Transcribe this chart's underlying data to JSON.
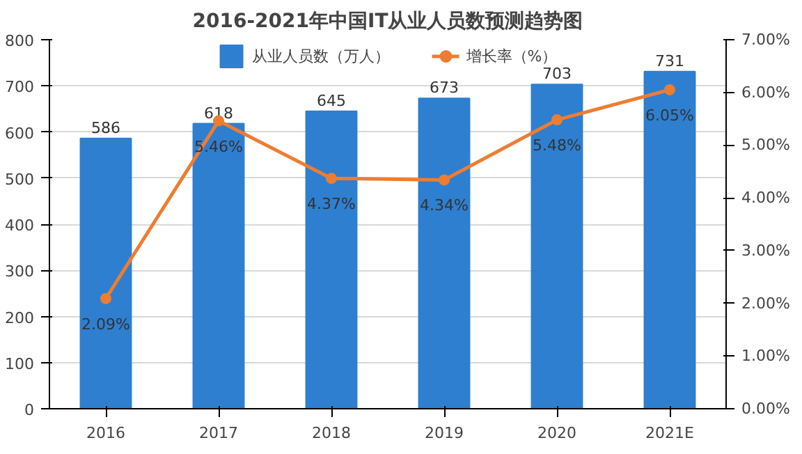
{
  "chart_data": {
    "type": "bar",
    "title": "2016-2021年中国IT从业人员数预测趋势图",
    "categories": [
      "2016",
      "2017",
      "2018",
      "2019",
      "2020",
      "2021E"
    ],
    "series": [
      {
        "name": "从业人员数（万人）",
        "color": "#2e7fd0",
        "values": [
          586,
          618,
          645,
          673,
          703,
          731
        ]
      },
      {
        "name": "增长率（%）",
        "color": "#ed7d31",
        "type": "line",
        "axis": "y2",
        "marker": "circle",
        "values": [
          2.09,
          5.46,
          4.37,
          4.34,
          5.48,
          6.05
        ]
      }
    ],
    "ylim": [
      0,
      800
    ],
    "yticks": [
      0,
      100,
      200,
      300,
      400,
      500,
      600,
      700,
      800
    ],
    "y2lim": [
      0,
      7
    ],
    "y2ticks": [
      {
        "value": 0,
        "label": "0.00%"
      },
      {
        "value": 1,
        "label": "1.00%"
      },
      {
        "value": 2,
        "label": "2.00%"
      },
      {
        "value": 3,
        "label": "3.00%"
      },
      {
        "value": 4,
        "label": "4.00%"
      },
      {
        "value": 5,
        "label": "5.00%"
      },
      {
        "value": 6,
        "label": "6.00%"
      },
      {
        "value": 7,
        "label": "7.00%"
      }
    ],
    "value_labels": [
      [
        "586",
        "618",
        "645",
        "673",
        "703",
        "731"
      ],
      [
        "2.09%",
        "5.46%",
        "4.37%",
        "4.34%",
        "5.48%",
        "6.05%"
      ]
    ],
    "grid": "y",
    "legend": "top"
  }
}
